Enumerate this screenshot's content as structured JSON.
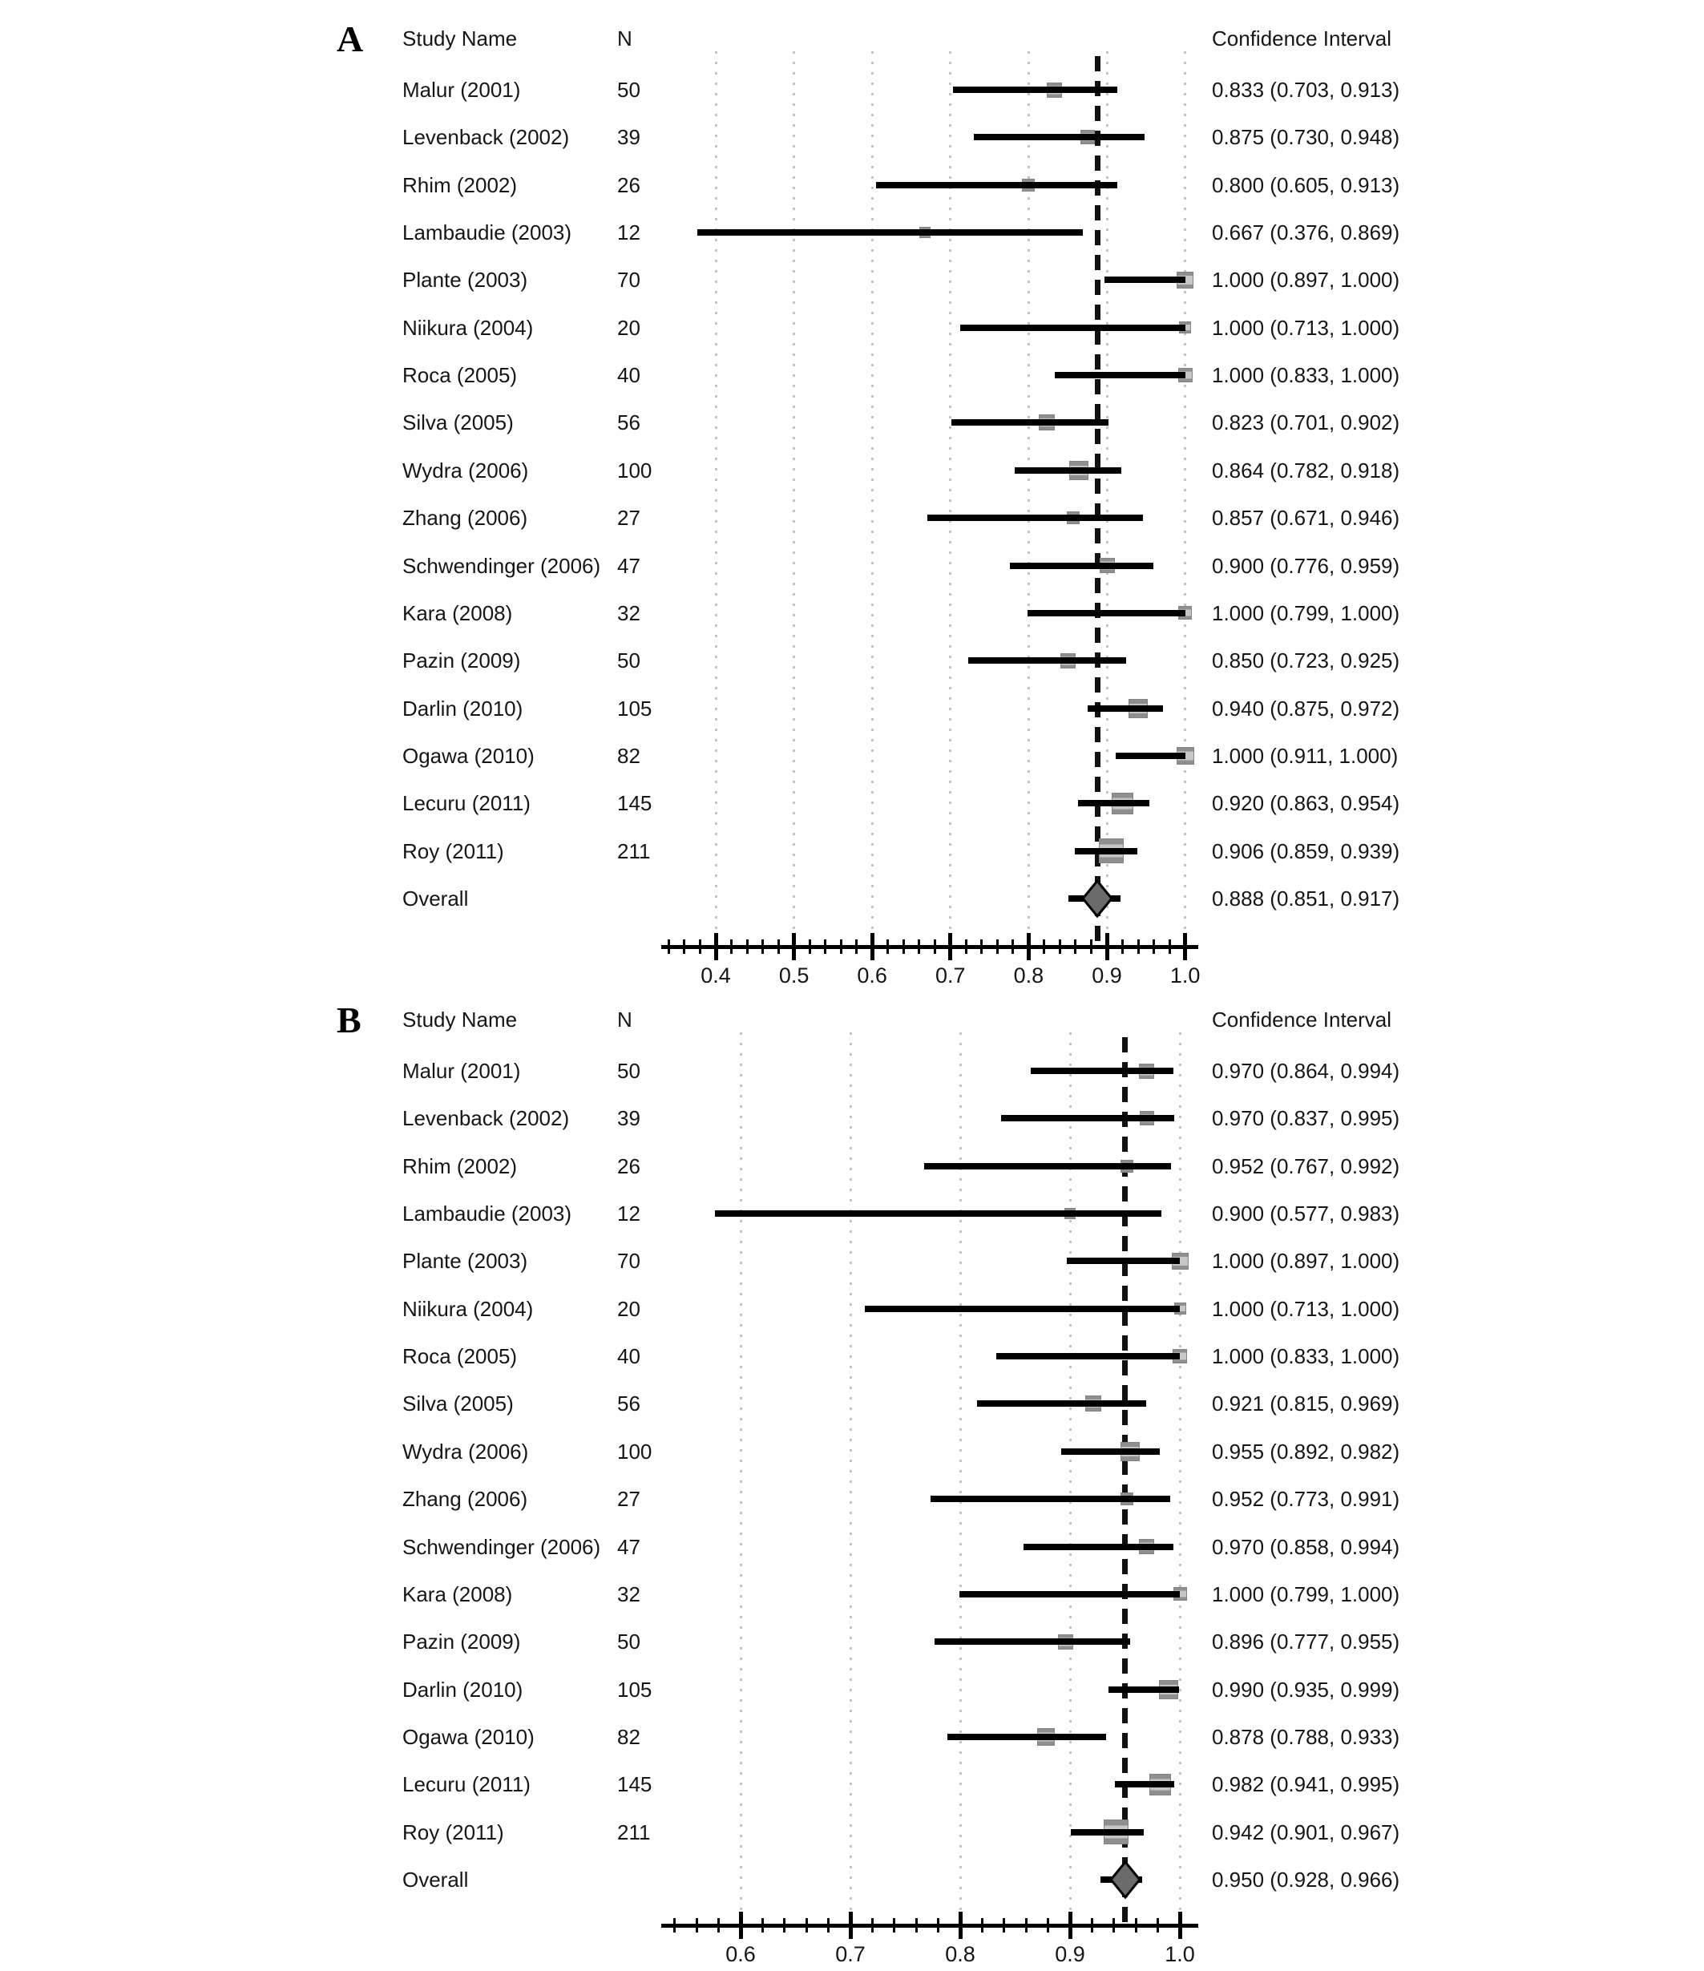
{
  "figure_title": "",
  "colors": {
    "background": "#ffffff",
    "text": "#161616",
    "ci_line": "#000000",
    "square_fill": "#b3b3b3",
    "square_border": "#848484",
    "diamond_fill": "#6b6b6b",
    "diamond_border": "#000000",
    "gridline": "#c3c3c3",
    "dashed_line": "#111111"
  },
  "chart_data": [
    {
      "type": "scatter",
      "subtype": "forest-plot",
      "label": "A",
      "headers": {
        "study": "Study Name",
        "n": "N",
        "ci": "Confidence Interval"
      },
      "axis": {
        "tick_values": [
          0.4,
          0.5,
          0.6,
          0.7,
          0.8,
          0.9,
          1.0
        ],
        "tick_labels": [
          "0.4",
          "0.5",
          "0.6",
          "0.7",
          "0.8",
          "0.9",
          "1.0"
        ],
        "minor_step": 0.02,
        "xlim": [
          0.327,
          1.017
        ],
        "grid": "dotted-vertical-at-major-ticks",
        "legend": "none"
      },
      "overall_reference_value": 0.888,
      "rows": [
        {
          "study": "Malur (2001)",
          "n": "50",
          "est": 0.833,
          "lo": 0.703,
          "hi": 0.913,
          "ci": "0.833 (0.703, 0.913)"
        },
        {
          "study": "Levenback (2002)",
          "n": "39",
          "est": 0.875,
          "lo": 0.73,
          "hi": 0.948,
          "ci": "0.875 (0.730, 0.948)"
        },
        {
          "study": "Rhim (2002)",
          "n": "26",
          "est": 0.8,
          "lo": 0.605,
          "hi": 0.913,
          "ci": "0.800 (0.605, 0.913)"
        },
        {
          "study": "Lambaudie (2003)",
          "n": "12",
          "est": 0.667,
          "lo": 0.376,
          "hi": 0.869,
          "ci": "0.667 (0.376, 0.869)"
        },
        {
          "study": "Plante (2003)",
          "n": "70",
          "est": 1.0,
          "lo": 0.897,
          "hi": 1.0,
          "ci": "1.000 (0.897, 1.000)"
        },
        {
          "study": "Niikura (2004)",
          "n": "20",
          "est": 1.0,
          "lo": 0.713,
          "hi": 1.0,
          "ci": "1.000 (0.713, 1.000)"
        },
        {
          "study": "Roca (2005)",
          "n": "40",
          "est": 1.0,
          "lo": 0.833,
          "hi": 1.0,
          "ci": "1.000 (0.833, 1.000)"
        },
        {
          "study": "Silva (2005)",
          "n": "56",
          "est": 0.823,
          "lo": 0.701,
          "hi": 0.902,
          "ci": "0.823 (0.701, 0.902)"
        },
        {
          "study": "Wydra (2006)",
          "n": "100",
          "est": 0.864,
          "lo": 0.782,
          "hi": 0.918,
          "ci": "0.864 (0.782, 0.918)"
        },
        {
          "study": "Zhang (2006)",
          "n": "27",
          "est": 0.857,
          "lo": 0.671,
          "hi": 0.946,
          "ci": "0.857 (0.671, 0.946)"
        },
        {
          "study": "Schwendinger (2006)",
          "n": "47",
          "est": 0.9,
          "lo": 0.776,
          "hi": 0.959,
          "ci": "0.900 (0.776, 0.959)"
        },
        {
          "study": "Kara (2008)",
          "n": "32",
          "est": 1.0,
          "lo": 0.799,
          "hi": 1.0,
          "ci": "1.000 (0.799, 1.000)"
        },
        {
          "study": "Pazin (2009)",
          "n": "50",
          "est": 0.85,
          "lo": 0.723,
          "hi": 0.925,
          "ci": "0.850 (0.723, 0.925)"
        },
        {
          "study": "Darlin (2010)",
          "n": "105",
          "est": 0.94,
          "lo": 0.875,
          "hi": 0.972,
          "ci": "0.940 (0.875, 0.972)"
        },
        {
          "study": "Ogawa (2010)",
          "n": "82",
          "est": 1.0,
          "lo": 0.911,
          "hi": 1.0,
          "ci": "1.000 (0.911, 1.000)"
        },
        {
          "study": "Lecuru (2011)",
          "n": "145",
          "est": 0.92,
          "lo": 0.863,
          "hi": 0.954,
          "ci": "0.920 (0.863, 0.954)"
        },
        {
          "study": "Roy (2011)",
          "n": "211",
          "est": 0.906,
          "lo": 0.859,
          "hi": 0.939,
          "ci": "0.906 (0.859, 0.939)"
        },
        {
          "study": "Overall",
          "n": "",
          "est": 0.888,
          "lo": 0.851,
          "hi": 0.917,
          "ci": "0.888 (0.851, 0.917)",
          "overall": true
        }
      ]
    },
    {
      "type": "scatter",
      "subtype": "forest-plot",
      "label": "B",
      "headers": {
        "study": "Study Name",
        "n": "N",
        "ci": "Confidence Interval"
      },
      "axis": {
        "tick_values": [
          0.6,
          0.7,
          0.8,
          0.9,
          1.0
        ],
        "tick_labels": [
          "0.6",
          "0.7",
          "0.8",
          "0.9",
          "1.0"
        ],
        "minor_step": 0.02,
        "xlim": [
          0.528,
          1.017
        ],
        "grid": "dotted-vertical-at-major-ticks",
        "legend": "none"
      },
      "overall_reference_value": 0.95,
      "rows": [
        {
          "study": "Malur (2001)",
          "n": "50",
          "est": 0.97,
          "lo": 0.864,
          "hi": 0.994,
          "ci": "0.970 (0.864, 0.994)"
        },
        {
          "study": "Levenback (2002)",
          "n": "39",
          "est": 0.97,
          "lo": 0.837,
          "hi": 0.995,
          "ci": "0.970 (0.837, 0.995)"
        },
        {
          "study": "Rhim (2002)",
          "n": "26",
          "est": 0.952,
          "lo": 0.767,
          "hi": 0.992,
          "ci": "0.952 (0.767, 0.992)"
        },
        {
          "study": "Lambaudie (2003)",
          "n": "12",
          "est": 0.9,
          "lo": 0.577,
          "hi": 0.983,
          "ci": "0.900 (0.577, 0.983)"
        },
        {
          "study": "Plante (2003)",
          "n": "70",
          "est": 1.0,
          "lo": 0.897,
          "hi": 1.0,
          "ci": "1.000 (0.897, 1.000)"
        },
        {
          "study": "Niikura (2004)",
          "n": "20",
          "est": 1.0,
          "lo": 0.713,
          "hi": 1.0,
          "ci": "1.000 (0.713, 1.000)"
        },
        {
          "study": "Roca (2005)",
          "n": "40",
          "est": 1.0,
          "lo": 0.833,
          "hi": 1.0,
          "ci": "1.000 (0.833, 1.000)"
        },
        {
          "study": "Silva (2005)",
          "n": "56",
          "est": 0.921,
          "lo": 0.815,
          "hi": 0.969,
          "ci": "0.921 (0.815, 0.969)"
        },
        {
          "study": "Wydra (2006)",
          "n": "100",
          "est": 0.955,
          "lo": 0.892,
          "hi": 0.982,
          "ci": "0.955 (0.892, 0.982)"
        },
        {
          "study": "Zhang (2006)",
          "n": "27",
          "est": 0.952,
          "lo": 0.773,
          "hi": 0.991,
          "ci": "0.952 (0.773, 0.991)"
        },
        {
          "study": "Schwendinger (2006)",
          "n": "47",
          "est": 0.97,
          "lo": 0.858,
          "hi": 0.994,
          "ci": "0.970 (0.858, 0.994)"
        },
        {
          "study": "Kara (2008)",
          "n": "32",
          "est": 1.0,
          "lo": 0.799,
          "hi": 1.0,
          "ci": "1.000 (0.799, 1.000)"
        },
        {
          "study": "Pazin (2009)",
          "n": "50",
          "est": 0.896,
          "lo": 0.777,
          "hi": 0.955,
          "ci": "0.896 (0.777, 0.955)"
        },
        {
          "study": "Darlin (2010)",
          "n": "105",
          "est": 0.99,
          "lo": 0.935,
          "hi": 0.999,
          "ci": "0.990 (0.935, 0.999)"
        },
        {
          "study": "Ogawa (2010)",
          "n": "82",
          "est": 0.878,
          "lo": 0.788,
          "hi": 0.933,
          "ci": "0.878 (0.788, 0.933)"
        },
        {
          "study": "Lecuru (2011)",
          "n": "145",
          "est": 0.982,
          "lo": 0.941,
          "hi": 0.995,
          "ci": "0.982 (0.941, 0.995)"
        },
        {
          "study": "Roy (2011)",
          "n": "211",
          "est": 0.942,
          "lo": 0.901,
          "hi": 0.967,
          "ci": "0.942 (0.901, 0.967)"
        },
        {
          "study": "Overall",
          "n": "",
          "est": 0.95,
          "lo": 0.928,
          "hi": 0.966,
          "ci": "0.950 (0.928, 0.966)",
          "overall": true
        }
      ]
    }
  ]
}
